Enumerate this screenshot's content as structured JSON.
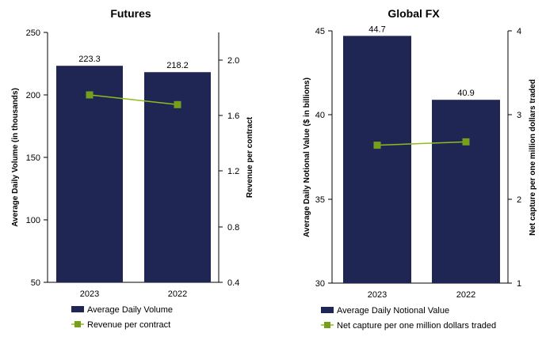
{
  "colors": {
    "bar": "#1f2654",
    "line": "#8fbc1f",
    "marker": "#76a01a",
    "axis": "#000000"
  },
  "chart_data": [
    {
      "type": "bar",
      "title": "Futures",
      "categories": [
        "2023",
        "2022"
      ],
      "series": [
        {
          "name": "Average Daily Volume",
          "type": "bar",
          "axis": "left",
          "values": [
            223.3,
            218.2
          ],
          "labels": [
            "223.3",
            "218.2"
          ]
        },
        {
          "name": "Revenue per contract",
          "type": "line",
          "axis": "right",
          "values": [
            1.75,
            1.68
          ]
        }
      ],
      "ylabel": "Average Daily Volume (in thousands)",
      "y2label": "Revenue per contract",
      "ylim": [
        50,
        250
      ],
      "yticks": [
        "50",
        "100",
        "150",
        "200",
        "250"
      ],
      "y2lim": [
        0.4,
        2.2
      ],
      "y2ticks": [
        "0.4",
        "0.8",
        "1.2",
        "1.6",
        "2.0"
      ],
      "legend_position": "bottom"
    },
    {
      "type": "bar",
      "title": "Global FX",
      "categories": [
        "2023",
        "2022"
      ],
      "series": [
        {
          "name": "Average Daily Notional Value",
          "type": "bar",
          "axis": "left",
          "values": [
            44.7,
            40.9
          ],
          "labels": [
            "44.7",
            "40.9"
          ]
        },
        {
          "name": "Net capture per one million dollars traded",
          "type": "line",
          "axis": "right",
          "values": [
            2.64,
            2.68
          ]
        }
      ],
      "ylabel": "Average Daily Notional Value ($ in billions)",
      "y2label": "Net capture per one million dollars traded",
      "ylim": [
        30,
        45
      ],
      "yticks": [
        "30",
        "35",
        "40",
        "45"
      ],
      "y2lim": [
        1,
        4
      ],
      "y2ticks": [
        "1",
        "2",
        "3",
        "4"
      ],
      "legend_position": "bottom"
    }
  ]
}
